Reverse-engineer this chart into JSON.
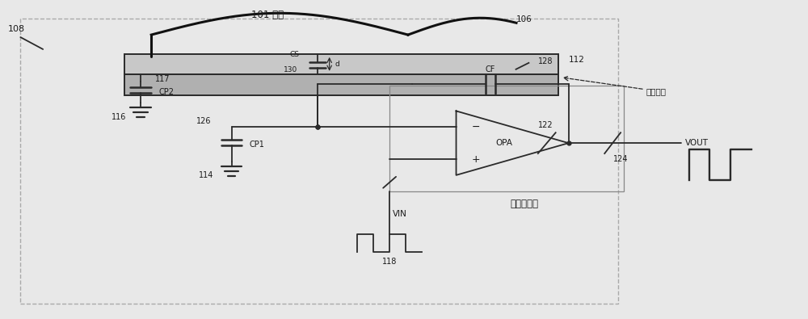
{
  "bg_color": "#e8e8e8",
  "line_color": "#2a2a2a",
  "text_color": "#1a1a1a",
  "fig_width": 10.0,
  "fig_height": 3.95,
  "labels": {
    "finger": "101 手指",
    "top_metal": "顶部金属",
    "opa_label": "OPA",
    "opamp_name": "运算放大器",
    "vin_label": "VIN",
    "vout_label": "VOUT",
    "cp1_label": "CP1",
    "cp2_label": "CP2",
    "cf_label": "CF",
    "cs_label": "CS",
    "d_label": "d",
    "n108": "108",
    "n112": "112",
    "n114": "114",
    "n116": "116",
    "n117": "117",
    "n118": "118",
    "n122": "122",
    "n124": "124",
    "n126": "126",
    "n128": "128",
    "n130": "130",
    "n106": "106"
  }
}
